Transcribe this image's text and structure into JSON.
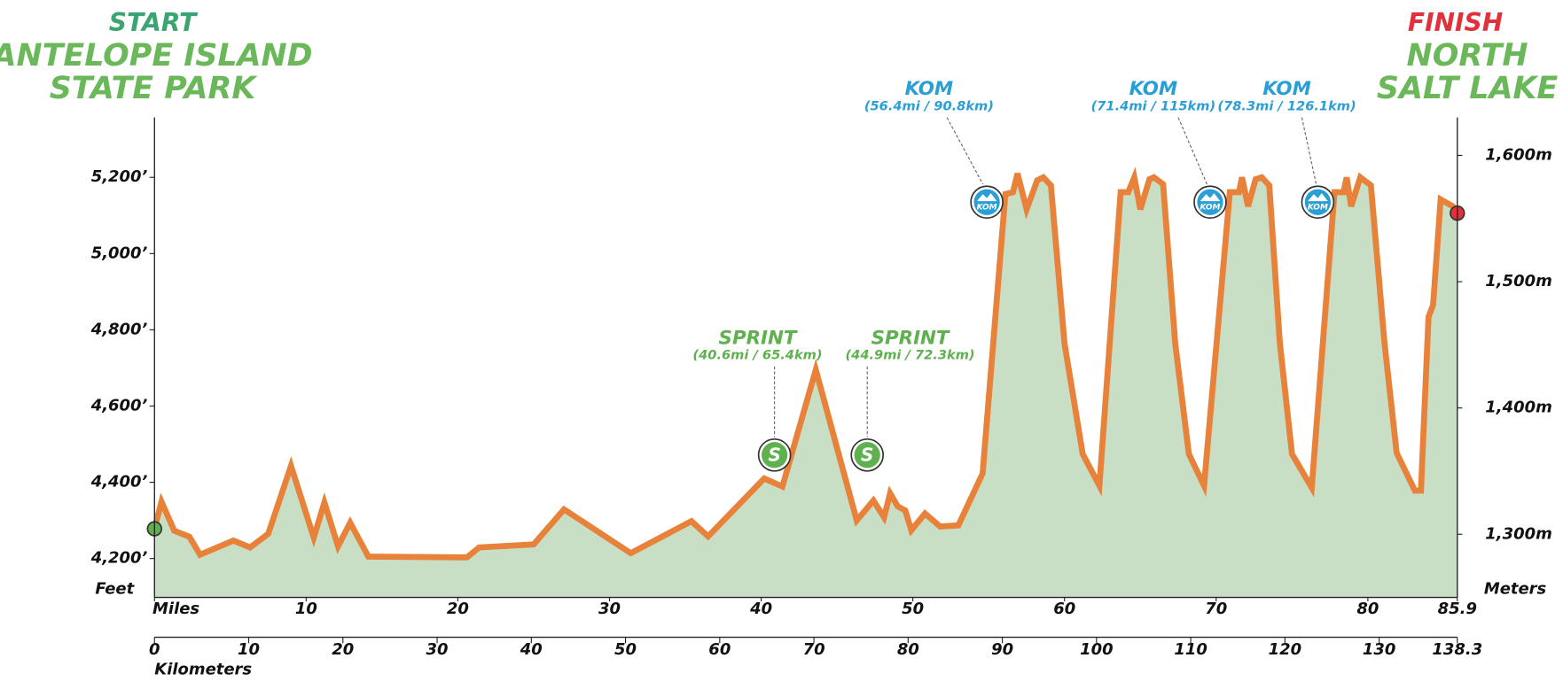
{
  "chart_data": {
    "type": "area",
    "start": {
      "label": "START",
      "lines": [
        "ANTELOPE ISLAND",
        "STATE PARK"
      ]
    },
    "finish": {
      "label": "FINISH",
      "lines": [
        "NORTH",
        "SALT LAKE"
      ]
    },
    "x": [
      0,
      0.46,
      1.3,
      2.3,
      3.0,
      5.2,
      6.3,
      7.5,
      9.0,
      10.5,
      11.2,
      12.1,
      12.9,
      14.1,
      20.6,
      21.4,
      25.0,
      27.0,
      31.4,
      35.4,
      36.5,
      40.2,
      41.4,
      43.6,
      46.3,
      47.4,
      48.1,
      48.5,
      49.0,
      49.5,
      49.9,
      50.8,
      51.8,
      53.0,
      54.6,
      56.1,
      56.6,
      56.9,
      57.5,
      58.2,
      58.6,
      59.1,
      60.0,
      61.2,
      62.3,
      63.7,
      64.2,
      64.6,
      65.0,
      65.6,
      65.9,
      66.5,
      67.3,
      68.2,
      69.2,
      70.9,
      71.5,
      71.7,
      72.1,
      72.6,
      73.0,
      73.5,
      74.2,
      75.0,
      76.3,
      77.8,
      78.4,
      78.6,
      78.9,
      79.5,
      80.2,
      81.1,
      81.9,
      83.1,
      83.5,
      84.0,
      84.3,
      84.8,
      85.6,
      85.9
    ],
    "values": [
      4278,
      4349,
      4273,
      4257,
      4210,
      4247,
      4229,
      4265,
      4443,
      4255,
      4347,
      4232,
      4294,
      4205,
      4203,
      4229,
      4237,
      4329,
      4214,
      4298,
      4258,
      4410,
      4389,
      4695,
      4300,
      4352,
      4308,
      4371,
      4337,
      4326,
      4274,
      4318,
      4284,
      4287,
      4423,
      5156,
      5161,
      5210,
      5116,
      5192,
      5200,
      5179,
      4764,
      4474,
      4391,
      5161,
      5161,
      5200,
      5116,
      5195,
      5200,
      5182,
      4764,
      4474,
      4391,
      5161,
      5161,
      5200,
      5124,
      5195,
      5200,
      5179,
      4764,
      4474,
      4386,
      5161,
      5161,
      5200,
      5124,
      5200,
      5179,
      4764,
      4477,
      4378,
      4378,
      4834,
      4865,
      5142,
      5124,
      5106
    ],
    "line_color": "#e8823a",
    "fill_color": "#c9dfc5",
    "start_color": "#5fb04f",
    "finish_color": "#e0313c",
    "xlim": [
      0,
      85.9
    ],
    "xticks": [
      {
        "value": 0,
        "label": "Miles"
      },
      10,
      20,
      30,
      40,
      50,
      60,
      70,
      80,
      85.9
    ],
    "x2lim": [
      0,
      138.3
    ],
    "x2ticks": [
      0,
      10,
      20,
      30,
      40,
      50,
      60,
      70,
      80,
      90,
      100,
      110,
      120,
      130,
      138.3
    ],
    "x2label": "Kilometers",
    "ylim": [
      4098,
      5357
    ],
    "yticks": [
      {
        "value": 4200,
        "label": "4,200’"
      },
      {
        "value": 4400,
        "label": "4,400’"
      },
      {
        "value": 4600,
        "label": "4,600’"
      },
      {
        "value": 4800,
        "label": "4,800’"
      },
      {
        "value": 5000,
        "label": "5,000’"
      },
      {
        "value": 5200,
        "label": "5,200’"
      }
    ],
    "ylabel": "Feet",
    "y2lim": [
      1250,
      1630
    ],
    "y2ticks": [
      {
        "value": 1300,
        "label": "1,300m"
      },
      {
        "value": 1400,
        "label": "1,400m"
      },
      {
        "value": 1500,
        "label": "1,500m"
      },
      {
        "value": 1600,
        "label": "1,600m"
      }
    ],
    "y2label": "Meters",
    "annotations": [
      {
        "kind": "sprint",
        "label": "SPRINT",
        "detail": "(40.6mi / 65.4km)",
        "icon": "S",
        "color": "#5fb04f"
      },
      {
        "kind": "sprint",
        "label": "SPRINT",
        "detail": "(44.9mi / 72.3km)",
        "icon": "S",
        "color": "#5fb04f"
      },
      {
        "kind": "kom",
        "label": "KOM",
        "detail": "(56.4mi / 90.8km)",
        "icon": "KOM",
        "color": "#2a9fd6"
      },
      {
        "kind": "kom",
        "label": "KOM",
        "detail": "(71.4mi / 115km)",
        "icon": "KOM",
        "color": "#2a9fd6"
      },
      {
        "kind": "kom",
        "label": "KOM",
        "detail": "(78.3mi / 126.1km)",
        "icon": "KOM",
        "color": "#2a9fd6"
      }
    ]
  }
}
